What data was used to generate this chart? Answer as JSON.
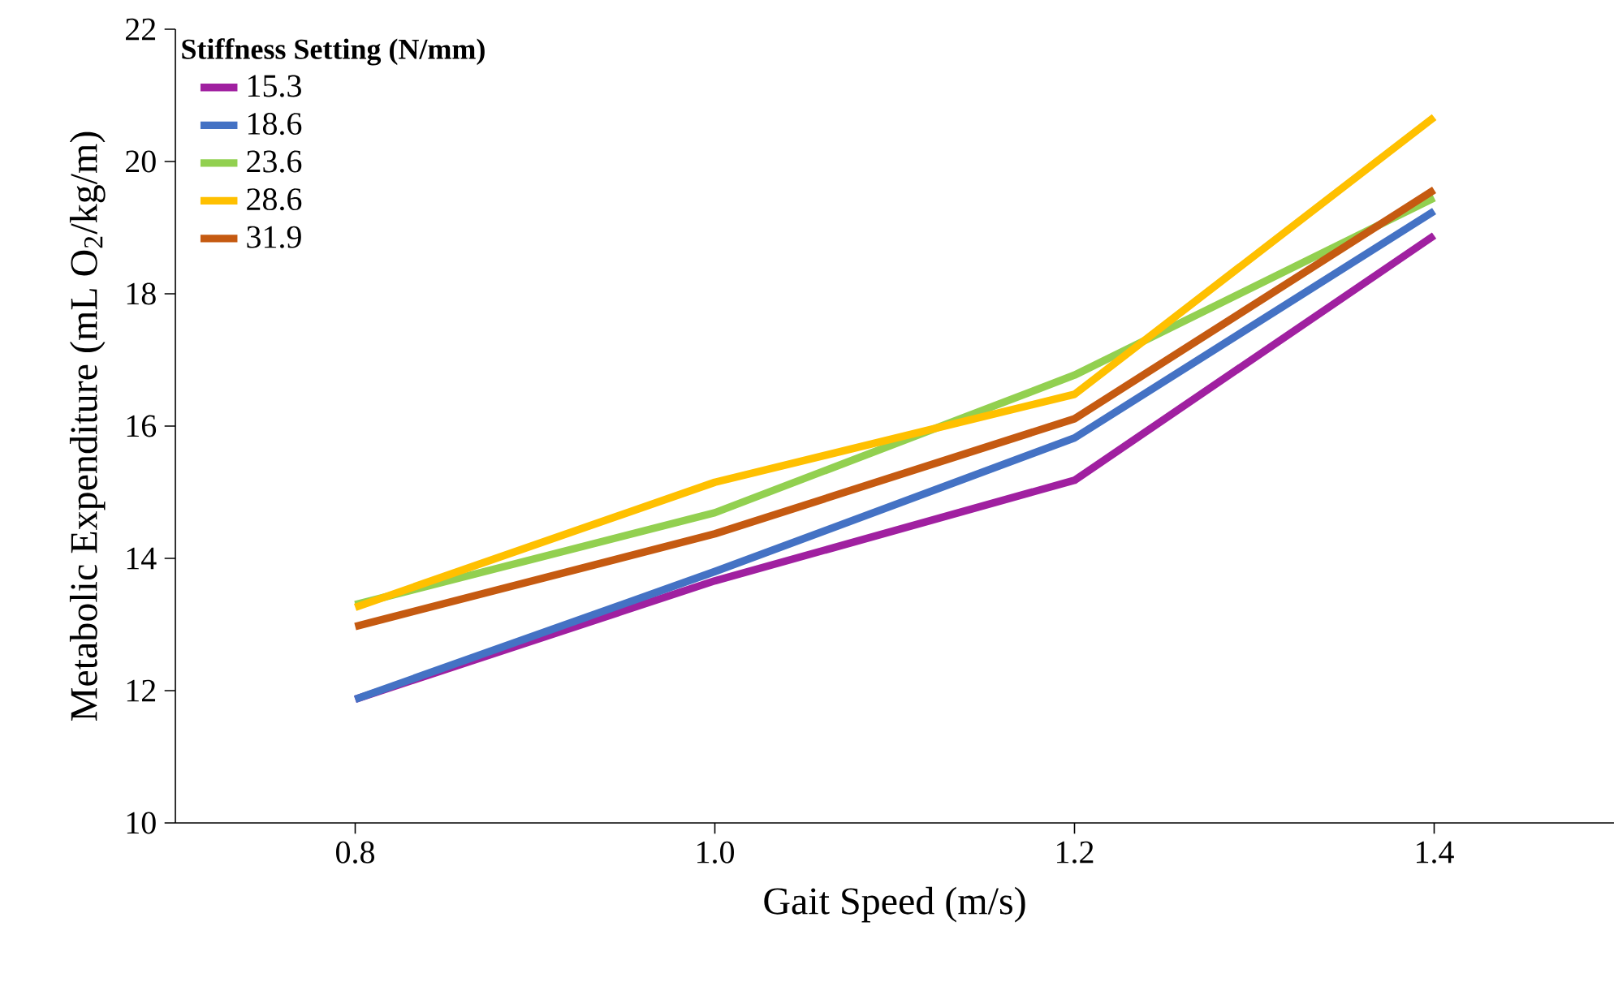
{
  "chart_data": {
    "type": "line",
    "xlabel": "Gait Speed (m/s)",
    "ylabel": "Metabolic Expenditure (mL O$_{2}$/kg/m)",
    "legend_title": "Stiffness Setting (N/mm)",
    "x": [
      0.8,
      1.0,
      1.2,
      1.4
    ],
    "xlim": [
      0.7,
      1.5
    ],
    "xticks": [
      0.8,
      {
        "value": 1.0,
        "label": "1.0"
      },
      1.2,
      1.4
    ],
    "ylim": [
      10,
      22
    ],
    "yticks": [
      10,
      12,
      14,
      16,
      18,
      20,
      22
    ],
    "grid": false,
    "legend": "top left",
    "marker": "none",
    "line_style": "solid",
    "series": [
      {
        "name": "15.3",
        "color": "#a020a0",
        "values": [
          11.87,
          13.66,
          15.18,
          18.88
        ]
      },
      {
        "name": "18.6",
        "color": "#4472c4",
        "values": [
          11.87,
          13.8,
          15.82,
          19.25
        ]
      },
      {
        "name": "23.6",
        "color": "#92d050",
        "values": [
          13.3,
          14.69,
          16.77,
          19.45
        ]
      },
      {
        "name": "28.6",
        "color": "#ffc000",
        "values": [
          13.26,
          15.15,
          16.48,
          20.67
        ]
      },
      {
        "name": "31.9",
        "color": "#c55a11",
        "values": [
          12.97,
          14.37,
          16.11,
          19.57
        ]
      }
    ]
  }
}
